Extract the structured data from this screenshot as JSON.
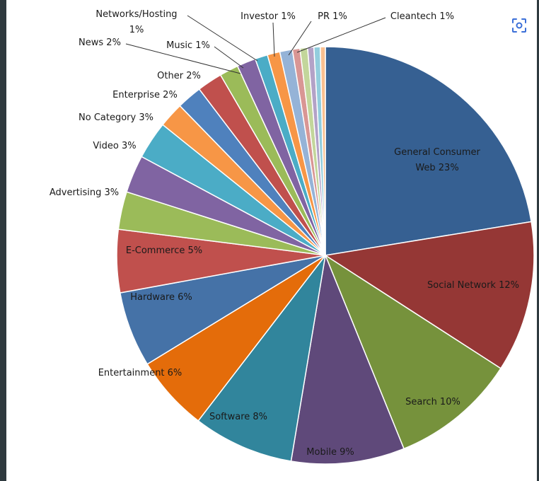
{
  "chart_data": {
    "type": "pie",
    "title": "",
    "slices": [
      {
        "label": "General Consumer Web",
        "value": 23,
        "display": "General Consumer|Web 23%",
        "color": "#366092"
      },
      {
        "label": "Social Network",
        "value": 12,
        "display": "Social Network 12%",
        "color": "#953735"
      },
      {
        "label": "Search",
        "value": 10,
        "display": "Search 10%",
        "color": "#76923c"
      },
      {
        "label": "Mobile",
        "value": 9,
        "display": "Mobile 9%",
        "color": "#5f497a"
      },
      {
        "label": "Software",
        "value": 8,
        "display": "Software 8%",
        "color": "#31859c"
      },
      {
        "label": "Entertainment",
        "value": 6,
        "display": "Entertainment  6%",
        "color": "#e46c0a"
      },
      {
        "label": "Hardware",
        "value": 6,
        "display": "Hardware 6%",
        "color": "#4572a7"
      },
      {
        "label": "E-Commerce",
        "value": 5,
        "display": "E-Commerce  5%",
        "color": "#c0504d"
      },
      {
        "label": "Advertising",
        "value": 3,
        "display": "Advertising 3%",
        "color": "#9bbb59"
      },
      {
        "label": "Video",
        "value": 3,
        "display": "Video 3%",
        "color": "#8064a2"
      },
      {
        "label": "No Category",
        "value": 3,
        "display": "No Category 3%",
        "color": "#4bacc6"
      },
      {
        "label": "Enterprise",
        "value": 2,
        "display": "Enterprise 2%",
        "color": "#f79646"
      },
      {
        "label": "Other",
        "value": 2,
        "display": "Other 2%",
        "color": "#4f81bd"
      },
      {
        "label": "News",
        "value": 2,
        "display": "News 2%",
        "color": "#c0504d"
      },
      {
        "label": "Music",
        "value": 1.5,
        "display": "Music 1%",
        "color": "#9bbb59"
      },
      {
        "label": "Networks/Hosting",
        "value": 1.5,
        "display": "Networks/Hosting|1%",
        "color": "#8064a2"
      },
      {
        "label": "Investor",
        "value": 1,
        "display": "Investor 1%",
        "color": "#4bacc6"
      },
      {
        "label": "PR",
        "value": 1,
        "display": "PR 1%",
        "color": "#f79646"
      },
      {
        "label": "Cleantech",
        "value": 1,
        "display": "Cleantech 1%",
        "color": "#95b3d7"
      },
      {
        "label": "",
        "value": 0.6,
        "display": "",
        "color": "#d99694"
      },
      {
        "label": "",
        "value": 0.6,
        "display": "",
        "color": "#c3d69b"
      },
      {
        "label": "",
        "value": 0.5,
        "display": "",
        "color": "#b3a2c7"
      },
      {
        "label": "",
        "value": 0.5,
        "display": "",
        "color": "#93cddd"
      },
      {
        "label": "",
        "value": 0.4,
        "display": "",
        "color": "#fac090"
      }
    ]
  },
  "ui": {
    "visual_search_icon": "lens-icon"
  }
}
